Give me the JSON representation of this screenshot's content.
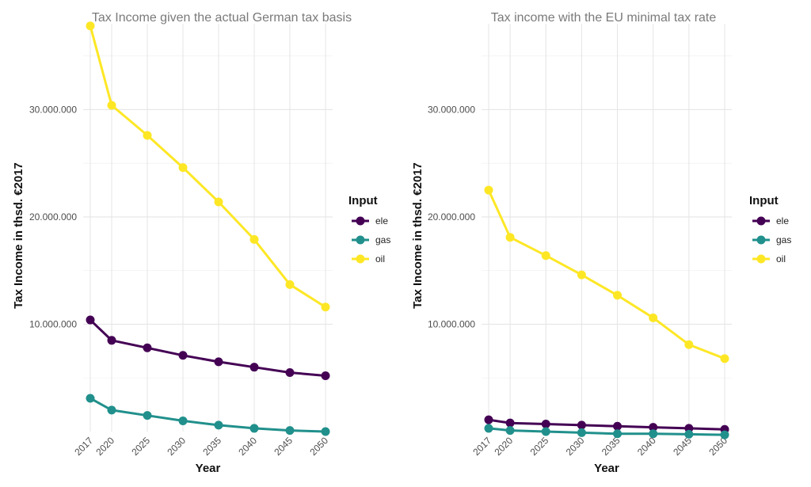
{
  "chart_data": [
    {
      "type": "line",
      "title": "Tax Income given the actual German tax basis",
      "xlabel": "Year",
      "ylabel": "Tax Income in thsd. €2017",
      "x": [
        2017,
        2020,
        2025,
        2030,
        2035,
        2040,
        2045,
        2050
      ],
      "xtick_labels": [
        "2017",
        "2020",
        "2025",
        "2030",
        "2035",
        "2040",
        "2045",
        "2050"
      ],
      "ylim": [
        0,
        38000000
      ],
      "yticks": [
        10000000,
        20000000,
        30000000
      ],
      "ytick_labels": [
        "10.000.000",
        "20.000.000",
        "30.000.000"
      ],
      "grid": true,
      "legend": {
        "title": "Input",
        "position": "right"
      },
      "series": [
        {
          "name": "ele",
          "color": "#440154",
          "values": [
            10400000,
            8500000,
            7800000,
            7100000,
            6500000,
            6000000,
            5500000,
            5200000
          ]
        },
        {
          "name": "gas",
          "color": "#21908C",
          "values": [
            3100000,
            2000000,
            1500000,
            1000000,
            600000,
            300000,
            100000,
            0
          ]
        },
        {
          "name": "oil",
          "color": "#FDE725",
          "values": [
            37800000,
            30400000,
            27600000,
            24600000,
            21400000,
            17900000,
            13700000,
            11600000
          ]
        }
      ]
    },
    {
      "type": "line",
      "title": "Tax income with the EU minimal tax rate",
      "xlabel": "Year",
      "ylabel": "Tax Income in thsd. €2017",
      "x": [
        2017,
        2020,
        2025,
        2030,
        2035,
        2040,
        2045,
        2050
      ],
      "xtick_labels": [
        "2017",
        "2020",
        "2025",
        "2030",
        "2035",
        "2040",
        "2045",
        "2050"
      ],
      "ylim": [
        0,
        38000000
      ],
      "yticks": [
        10000000,
        20000000,
        30000000
      ],
      "ytick_labels": [
        "10.000.000",
        "20.000.000",
        "30.000.000"
      ],
      "grid": true,
      "legend": {
        "title": "Input",
        "position": "right"
      },
      "series": [
        {
          "name": "ele",
          "color": "#440154",
          "values": [
            1100000,
            800000,
            700000,
            600000,
            500000,
            400000,
            300000,
            200000
          ]
        },
        {
          "name": "gas",
          "color": "#21908C",
          "values": [
            300000,
            100000,
            0,
            -100000,
            -200000,
            -200000,
            -250000,
            -300000
          ]
        },
        {
          "name": "oil",
          "color": "#FDE725",
          "values": [
            22500000,
            18100000,
            16400000,
            14600000,
            12700000,
            10600000,
            8100000,
            6800000
          ]
        }
      ]
    }
  ]
}
